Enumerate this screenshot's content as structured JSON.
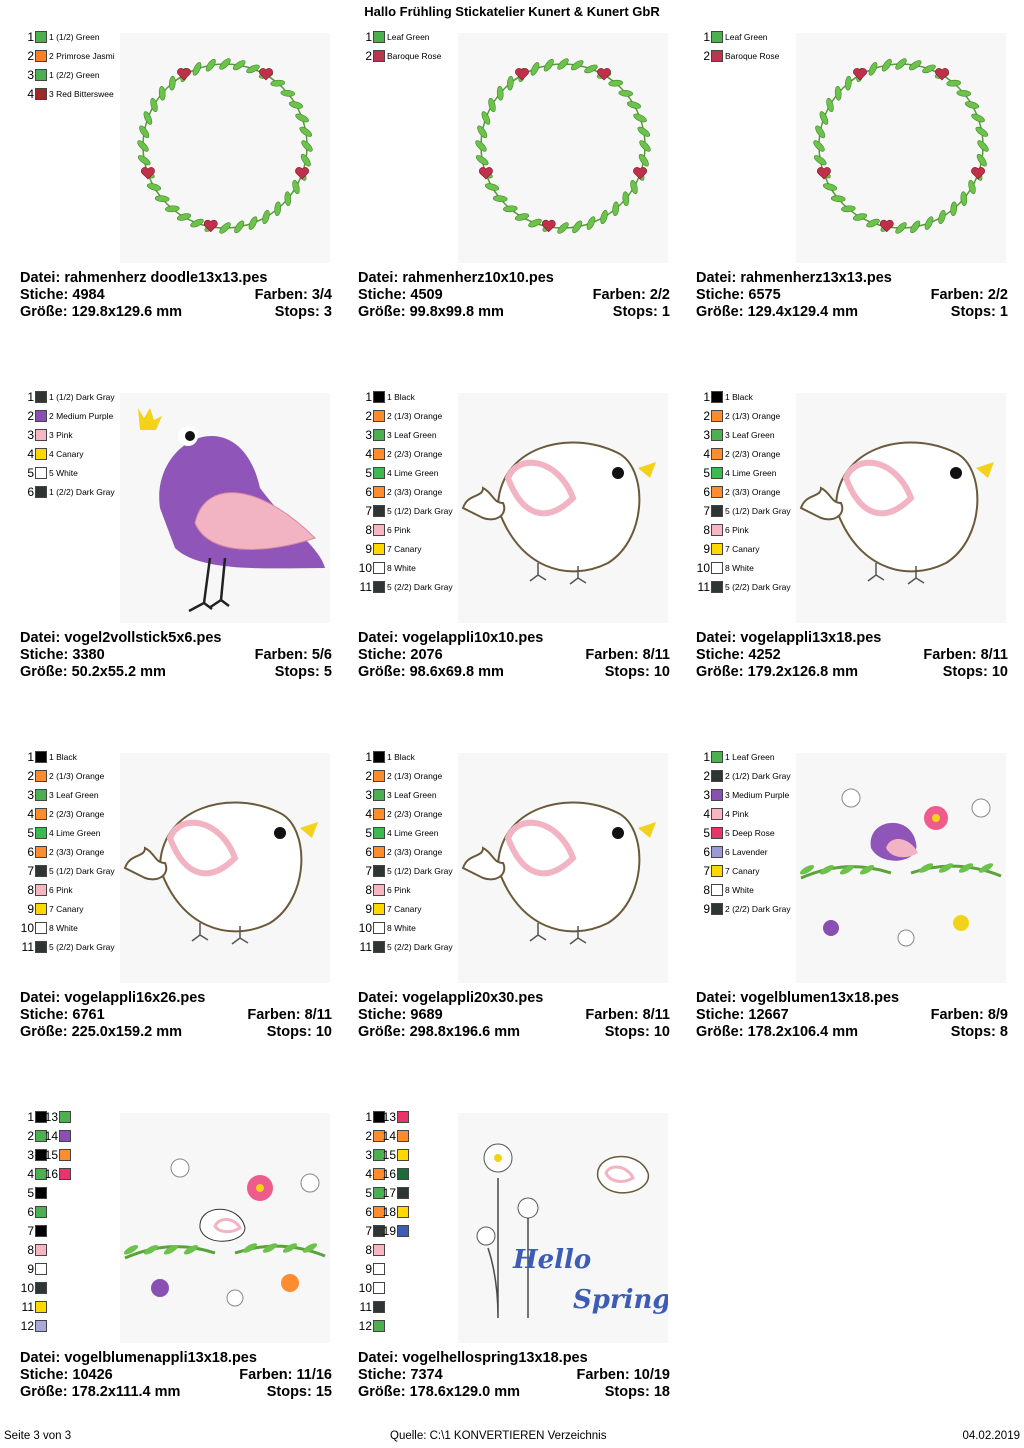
{
  "title": "Hallo Frühling Stickatelier Kunert & Kunert GbR",
  "footer": {
    "page": "Seite 3 von 3",
    "source": "Quelle: C:\\1 KONVERTIEREN Verzeichnis",
    "date": "04.02.2019"
  },
  "labels": {
    "stitches": "Stiche:",
    "colors": "Farben:",
    "size": "Größe:",
    "stops": "Stops:",
    "file": "Datei:"
  },
  "designs": [
    {
      "file": "rahmenherz doodle13x13.pes",
      "stitches": "4984",
      "colors": "3/4",
      "size": "129.8x129.6 mm",
      "stops": "3",
      "art": "wreath",
      "legend": [
        {
          "n": "1",
          "name": "1 (1/2) Green",
          "color": "#4caf50"
        },
        {
          "n": "2",
          "name": "2 Primrose Jasmi",
          "color": "#ff7f27"
        },
        {
          "n": "3",
          "name": "1 (2/2) Green",
          "color": "#4caf50"
        },
        {
          "n": "4",
          "name": "3 Red Bitterswee",
          "color": "#9c2a2a"
        }
      ]
    },
    {
      "file": "rahmenherz10x10.pes",
      "stitches": "4509",
      "colors": "2/2",
      "size": "99.8x99.8 mm",
      "stops": "1",
      "art": "wreath",
      "legend": [
        {
          "n": "1",
          "name": "Leaf Green",
          "color": "#4caf50"
        },
        {
          "n": "2",
          "name": "Baroque Rose",
          "color": "#b83650"
        }
      ]
    },
    {
      "file": "rahmenherz13x13.pes",
      "stitches": "6575",
      "colors": "2/2",
      "size": "129.4x129.4 mm",
      "stops": "1",
      "art": "wreath",
      "legend": [
        {
          "n": "1",
          "name": "Leaf Green",
          "color": "#4caf50"
        },
        {
          "n": "2",
          "name": "Baroque Rose",
          "color": "#b83650"
        }
      ]
    },
    {
      "file": "vogel2vollstick5x6.pes",
      "stitches": "3380",
      "colors": "5/6",
      "size": "50.2x55.2 mm",
      "stops": "5",
      "art": "purplebird",
      "legend": [
        {
          "n": "1",
          "name": "1 (1/2) Dark Gray",
          "color": "#2f3434"
        },
        {
          "n": "2",
          "name": "2 Medium Purple",
          "color": "#8a4fb3"
        },
        {
          "n": "3",
          "name": "3 Pink",
          "color": "#f7b6c2"
        },
        {
          "n": "4",
          "name": "4 Canary",
          "color": "#ffd800"
        },
        {
          "n": "5",
          "name": "5 White",
          "color": "#ffffff"
        },
        {
          "n": "6",
          "name": "1 (2/2) Dark Gray",
          "color": "#2f3434"
        }
      ]
    },
    {
      "file": "vogelappli10x10.pes",
      "stitches": "2076",
      "colors": "8/11",
      "size": "98.6x69.8 mm",
      "stops": "10",
      "art": "outlinebird",
      "legend": [
        {
          "n": "1",
          "name": "1 Black",
          "color": "#000000"
        },
        {
          "n": "2",
          "name": "2 (1/3) Orange",
          "color": "#ff8c2e"
        },
        {
          "n": "3",
          "name": "3 Leaf Green",
          "color": "#4caf50"
        },
        {
          "n": "4",
          "name": "2 (2/3) Orange",
          "color": "#ff8c2e"
        },
        {
          "n": "5",
          "name": "4 Lime Green",
          "color": "#3cb94f"
        },
        {
          "n": "6",
          "name": "2 (3/3) Orange",
          "color": "#ff8c2e"
        },
        {
          "n": "7",
          "name": "5 (1/2) Dark Gray",
          "color": "#2f3434"
        },
        {
          "n": "8",
          "name": "6 Pink",
          "color": "#f7b6c2"
        },
        {
          "n": "9",
          "name": "7 Canary",
          "color": "#ffd800"
        },
        {
          "n": "10",
          "name": "8 White",
          "color": "#ffffff"
        },
        {
          "n": "11",
          "name": "5 (2/2) Dark Gray",
          "color": "#2f3434"
        }
      ]
    },
    {
      "file": "vogelappli13x18.pes",
      "stitches": "4252",
      "colors": "8/11",
      "size": "179.2x126.8 mm",
      "stops": "10",
      "art": "outlinebird",
      "legend": [
        {
          "n": "1",
          "name": "1 Black",
          "color": "#000000"
        },
        {
          "n": "2",
          "name": "2 (1/3) Orange",
          "color": "#ff8c2e"
        },
        {
          "n": "3",
          "name": "3 Leaf Green",
          "color": "#4caf50"
        },
        {
          "n": "4",
          "name": "2 (2/3) Orange",
          "color": "#ff8c2e"
        },
        {
          "n": "5",
          "name": "4 Lime Green",
          "color": "#3cb94f"
        },
        {
          "n": "6",
          "name": "2 (3/3) Orange",
          "color": "#ff8c2e"
        },
        {
          "n": "7",
          "name": "5 (1/2) Dark Gray",
          "color": "#2f3434"
        },
        {
          "n": "8",
          "name": "6 Pink",
          "color": "#f7b6c2"
        },
        {
          "n": "9",
          "name": "7 Canary",
          "color": "#ffd800"
        },
        {
          "n": "10",
          "name": "8 White",
          "color": "#ffffff"
        },
        {
          "n": "11",
          "name": "5 (2/2) Dark Gray",
          "color": "#2f3434"
        }
      ]
    },
    {
      "file": "vogelappli16x26.pes",
      "stitches": "6761",
      "colors": "8/11",
      "size": "225.0x159.2 mm",
      "stops": "10",
      "art": "outlinebird",
      "legend": [
        {
          "n": "1",
          "name": "1 Black",
          "color": "#000000"
        },
        {
          "n": "2",
          "name": "2 (1/3) Orange",
          "color": "#ff8c2e"
        },
        {
          "n": "3",
          "name": "3 Leaf Green",
          "color": "#4caf50"
        },
        {
          "n": "4",
          "name": "2 (2/3) Orange",
          "color": "#ff8c2e"
        },
        {
          "n": "5",
          "name": "4 Lime Green",
          "color": "#3cb94f"
        },
        {
          "n": "6",
          "name": "2 (3/3) Orange",
          "color": "#ff8c2e"
        },
        {
          "n": "7",
          "name": "5 (1/2) Dark Gray",
          "color": "#2f3434"
        },
        {
          "n": "8",
          "name": "6 Pink",
          "color": "#f7b6c2"
        },
        {
          "n": "9",
          "name": "7 Canary",
          "color": "#ffd800"
        },
        {
          "n": "10",
          "name": "8 White",
          "color": "#ffffff"
        },
        {
          "n": "11",
          "name": "5 (2/2) Dark Gray",
          "color": "#2f3434"
        }
      ]
    },
    {
      "file": "vogelappli20x30.pes",
      "stitches": "9689",
      "colors": "8/11",
      "size": "298.8x196.6 mm",
      "stops": "10",
      "art": "outlinebird",
      "legend": [
        {
          "n": "1",
          "name": "1 Black",
          "color": "#000000"
        },
        {
          "n": "2",
          "name": "2 (1/3) Orange",
          "color": "#ff8c2e"
        },
        {
          "n": "3",
          "name": "3 Leaf Green",
          "color": "#4caf50"
        },
        {
          "n": "4",
          "name": "2 (2/3) Orange",
          "color": "#ff8c2e"
        },
        {
          "n": "5",
          "name": "4 Lime Green",
          "color": "#3cb94f"
        },
        {
          "n": "6",
          "name": "2 (3/3) Orange",
          "color": "#ff8c2e"
        },
        {
          "n": "7",
          "name": "5 (1/2) Dark Gray",
          "color": "#2f3434"
        },
        {
          "n": "8",
          "name": "6 Pink",
          "color": "#f7b6c2"
        },
        {
          "n": "9",
          "name": "7 Canary",
          "color": "#ffd800"
        },
        {
          "n": "10",
          "name": "8 White",
          "color": "#ffffff"
        },
        {
          "n": "11",
          "name": "5 (2/2) Dark Gray",
          "color": "#2f3434"
        }
      ]
    },
    {
      "file": "vogelblumen13x18.pes",
      "stitches": "12667",
      "colors": "8/9",
      "size": "178.2x106.4 mm",
      "stops": "8",
      "art": "flowerbird",
      "legend": [
        {
          "n": "1",
          "name": "1 Leaf Green",
          "color": "#4caf50"
        },
        {
          "n": "2",
          "name": "2 (1/2) Dark Gray",
          "color": "#2f3434"
        },
        {
          "n": "3",
          "name": "3 Medium Purple",
          "color": "#8a4fb3"
        },
        {
          "n": "4",
          "name": "4 Pink",
          "color": "#f7b6c2"
        },
        {
          "n": "5",
          "name": "5 Deep Rose",
          "color": "#e8336b"
        },
        {
          "n": "6",
          "name": "6 Lavender",
          "color": "#9a9ad6"
        },
        {
          "n": "7",
          "name": "7 Canary",
          "color": "#ffd800"
        },
        {
          "n": "8",
          "name": "8 White",
          "color": "#ffffff"
        },
        {
          "n": "9",
          "name": "2 (2/2) Dark Gray",
          "color": "#2f3434"
        }
      ]
    },
    {
      "file": "vogelblumenappli13x18.pes",
      "stitches": "10426",
      "colors": "11/16",
      "size": "178.2x111.4 mm",
      "stops": "15",
      "art": "flowerbirdappli",
      "legend": [
        {
          "n": "1",
          "color": "#000000"
        },
        {
          "n": "2",
          "color": "#4caf50"
        },
        {
          "n": "3",
          "color": "#000000"
        },
        {
          "n": "4",
          "color": "#4caf50"
        },
        {
          "n": "5",
          "color": "#000000"
        },
        {
          "n": "6",
          "color": "#4caf50"
        },
        {
          "n": "7",
          "color": "#000000"
        },
        {
          "n": "8",
          "color": "#f7b6c2"
        },
        {
          "n": "9",
          "color": "#ffffff"
        },
        {
          "n": "10",
          "color": "#2f3434"
        },
        {
          "n": "11",
          "color": "#ffd800"
        },
        {
          "n": "12",
          "color": "#a9a9d9"
        }
      ],
      "legend2": [
        {
          "n": "13",
          "color": "#4caf50"
        },
        {
          "n": "14",
          "color": "#8a4fb3"
        },
        {
          "n": "15",
          "color": "#ff8c2e"
        },
        {
          "n": "16",
          "color": "#e8336b"
        }
      ]
    },
    {
      "file": "vogelhellospring13x18.pes",
      "stitches": "7374",
      "colors": "10/19",
      "size": "178.6x129.0 mm",
      "stops": "18",
      "art": "hellospring",
      "hello": "Hello",
      "spring": "Spring!",
      "legend": [
        {
          "n": "1",
          "color": "#000000"
        },
        {
          "n": "2",
          "color": "#ff8c2e"
        },
        {
          "n": "3",
          "color": "#4caf50"
        },
        {
          "n": "4",
          "color": "#ff8c2e"
        },
        {
          "n": "5",
          "color": "#4caf50"
        },
        {
          "n": "6",
          "color": "#ff8c2e"
        },
        {
          "n": "7",
          "color": "#2f3434"
        },
        {
          "n": "8",
          "color": "#f7b6c2"
        },
        {
          "n": "9",
          "color": "#ffffff"
        },
        {
          "n": "10",
          "color": "#ffffff"
        },
        {
          "n": "11",
          "color": "#2f3434"
        },
        {
          "n": "12",
          "color": "#4caf50"
        }
      ],
      "legend2": [
        {
          "n": "13",
          "color": "#e8336b"
        },
        {
          "n": "14",
          "color": "#ff8c2e"
        },
        {
          "n": "15",
          "color": "#ffd800"
        },
        {
          "n": "16",
          "color": "#1e6b3a"
        },
        {
          "n": "17",
          "color": "#2f3434"
        },
        {
          "n": "18",
          "color": "#ffd800"
        },
        {
          "n": "19",
          "color": "#3d5db5"
        }
      ]
    }
  ]
}
